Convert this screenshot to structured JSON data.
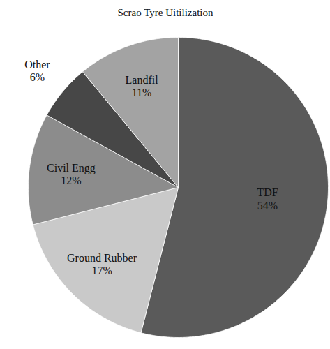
{
  "chart_data": {
    "type": "pie",
    "title": "Scrao Tyre Uitilization",
    "categories": [
      "TDF",
      "Ground Rubber",
      "Civil Engg",
      "Other",
      "Landfil"
    ],
    "values": [
      54,
      17,
      12,
      6,
      11
    ],
    "value_labels": [
      "54%",
      "17%",
      "12%",
      "6%",
      "11%"
    ],
    "colors": [
      "#5a5a5a",
      "#c9c9c9",
      "#8c8c8c",
      "#474747",
      "#a3a3a3"
    ],
    "data_labels": true
  }
}
